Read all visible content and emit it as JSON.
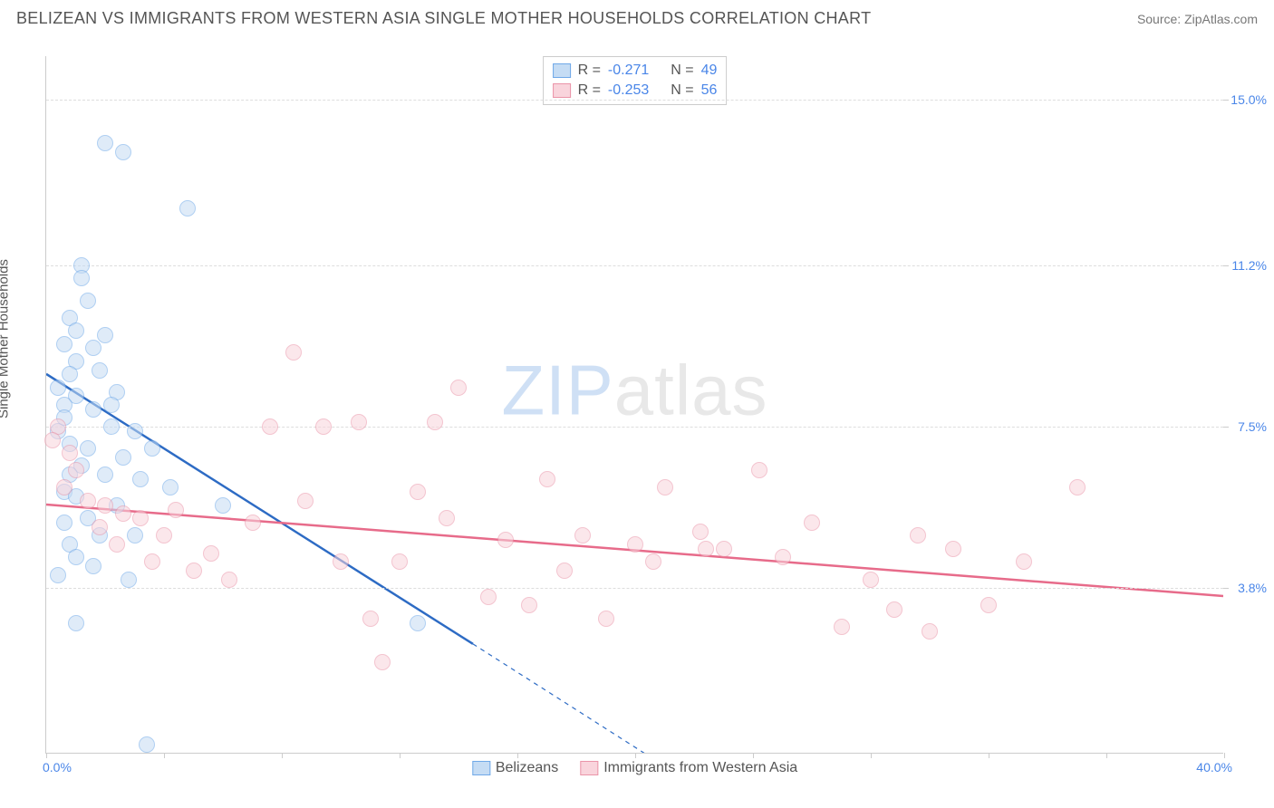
{
  "header": {
    "title": "BELIZEAN VS IMMIGRANTS FROM WESTERN ASIA SINGLE MOTHER HOUSEHOLDS CORRELATION CHART",
    "source": "Source: ZipAtlas.com"
  },
  "chart": {
    "type": "scatter",
    "background_color": "#ffffff",
    "grid_color": "#dddddd",
    "axis_color": "#cccccc",
    "label_color": "#4a86e8",
    "text_color": "#555555",
    "xlim": [
      0,
      40
    ],
    "ylim": [
      0,
      16
    ],
    "x_ticks": [
      0,
      4,
      8,
      12,
      16,
      20,
      24,
      28,
      32,
      36,
      40
    ],
    "y_grid": [
      3.8,
      7.5,
      11.2,
      15.0
    ],
    "y_tick_labels": [
      "3.8%",
      "7.5%",
      "11.2%",
      "15.0%"
    ],
    "x_min_label": "0.0%",
    "x_max_label": "40.0%",
    "y_axis_title": "Single Mother Households",
    "title_fontsize": 18,
    "label_fontsize": 14,
    "marker_radius": 9,
    "marker_border_width": 1.2,
    "trend_line_width": 2.5,
    "watermark": {
      "text_a": "ZIP",
      "text_b": "atlas"
    },
    "series": [
      {
        "name": "Belizeans",
        "fill": "#c5dcf4",
        "stroke": "#6fa8e8",
        "fill_opacity": 0.55,
        "trend": {
          "x1": 0,
          "y1": 8.7,
          "x2": 14.5,
          "y2": 2.5,
          "dash_to_x": 21,
          "dash_to_y": -0.3
        },
        "points": [
          [
            2.0,
            14.0
          ],
          [
            2.6,
            13.8
          ],
          [
            4.8,
            12.5
          ],
          [
            1.2,
            11.2
          ],
          [
            1.4,
            10.4
          ],
          [
            0.8,
            10.0
          ],
          [
            1.0,
            9.7
          ],
          [
            0.6,
            9.4
          ],
          [
            1.6,
            9.3
          ],
          [
            1.0,
            9.0
          ],
          [
            0.8,
            8.7
          ],
          [
            1.8,
            8.8
          ],
          [
            2.4,
            8.3
          ],
          [
            1.0,
            8.2
          ],
          [
            1.6,
            7.9
          ],
          [
            0.6,
            8.0
          ],
          [
            2.2,
            7.5
          ],
          [
            3.0,
            7.4
          ],
          [
            0.4,
            7.4
          ],
          [
            0.8,
            7.1
          ],
          [
            1.4,
            7.0
          ],
          [
            2.6,
            6.8
          ],
          [
            1.2,
            6.6
          ],
          [
            2.0,
            6.4
          ],
          [
            0.6,
            6.0
          ],
          [
            3.6,
            7.0
          ],
          [
            3.2,
            6.3
          ],
          [
            1.0,
            5.9
          ],
          [
            4.2,
            6.1
          ],
          [
            2.4,
            5.7
          ],
          [
            1.4,
            5.4
          ],
          [
            0.6,
            5.3
          ],
          [
            6.0,
            5.7
          ],
          [
            3.0,
            5.0
          ],
          [
            0.8,
            4.8
          ],
          [
            1.6,
            4.3
          ],
          [
            2.8,
            4.0
          ],
          [
            0.4,
            4.1
          ],
          [
            1.0,
            3.0
          ],
          [
            12.6,
            3.0
          ],
          [
            3.4,
            0.2
          ],
          [
            0.6,
            7.7
          ],
          [
            0.4,
            8.4
          ],
          [
            2.0,
            9.6
          ],
          [
            1.2,
            10.9
          ],
          [
            0.8,
            6.4
          ],
          [
            1.8,
            5.0
          ],
          [
            2.2,
            8.0
          ],
          [
            1.0,
            4.5
          ]
        ]
      },
      {
        "name": "Immigrants from Western Asia",
        "fill": "#f9d4dc",
        "stroke": "#ea94a8",
        "fill_opacity": 0.55,
        "trend": {
          "x1": 0,
          "y1": 5.7,
          "x2": 40,
          "y2": 3.6
        },
        "points": [
          [
            0.4,
            7.5
          ],
          [
            0.2,
            7.2
          ],
          [
            0.8,
            6.9
          ],
          [
            1.0,
            6.5
          ],
          [
            0.6,
            6.1
          ],
          [
            1.4,
            5.8
          ],
          [
            2.0,
            5.7
          ],
          [
            2.6,
            5.5
          ],
          [
            1.8,
            5.2
          ],
          [
            3.2,
            5.4
          ],
          [
            2.4,
            4.8
          ],
          [
            4.0,
            5.0
          ],
          [
            3.6,
            4.4
          ],
          [
            5.0,
            4.2
          ],
          [
            4.4,
            5.6
          ],
          [
            5.6,
            4.6
          ],
          [
            6.2,
            4.0
          ],
          [
            7.0,
            5.3
          ],
          [
            7.6,
            7.5
          ],
          [
            8.4,
            9.2
          ],
          [
            8.8,
            5.8
          ],
          [
            9.4,
            7.5
          ],
          [
            10.0,
            4.4
          ],
          [
            10.6,
            7.6
          ],
          [
            11.0,
            3.1
          ],
          [
            11.4,
            2.1
          ],
          [
            12.0,
            4.4
          ],
          [
            12.6,
            6.0
          ],
          [
            13.2,
            7.6
          ],
          [
            14.0,
            8.4
          ],
          [
            13.6,
            5.4
          ],
          [
            15.0,
            3.6
          ],
          [
            15.6,
            4.9
          ],
          [
            16.4,
            3.4
          ],
          [
            17.0,
            6.3
          ],
          [
            17.6,
            4.2
          ],
          [
            18.2,
            5.0
          ],
          [
            19.0,
            3.1
          ],
          [
            20.0,
            4.8
          ],
          [
            21.0,
            6.1
          ],
          [
            22.2,
            5.1
          ],
          [
            23.0,
            4.7
          ],
          [
            24.2,
            6.5
          ],
          [
            25.0,
            4.5
          ],
          [
            26.0,
            5.3
          ],
          [
            27.0,
            2.9
          ],
          [
            28.0,
            4.0
          ],
          [
            28.8,
            3.3
          ],
          [
            29.6,
            5.0
          ],
          [
            30.8,
            4.7
          ],
          [
            32.0,
            3.4
          ],
          [
            33.2,
            4.4
          ],
          [
            35.0,
            6.1
          ],
          [
            30.0,
            2.8
          ],
          [
            22.4,
            4.7
          ],
          [
            20.6,
            4.4
          ]
        ]
      }
    ],
    "stats": [
      {
        "series": 0,
        "r_label": "R =",
        "r": "-0.271",
        "n_label": "N =",
        "n": "49"
      },
      {
        "series": 1,
        "r_label": "R =",
        "r": "-0.253",
        "n_label": "N =",
        "n": "56"
      }
    ],
    "legend": [
      {
        "series": 0,
        "label": "Belizeans"
      },
      {
        "series": 1,
        "label": "Immigrants from Western Asia"
      }
    ]
  }
}
